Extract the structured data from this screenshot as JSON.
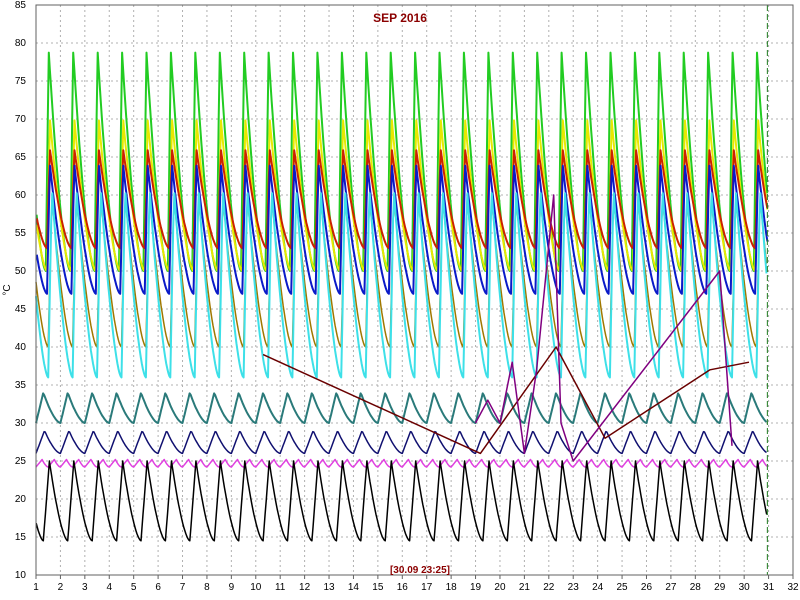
{
  "chart_data": {
    "type": "line",
    "title": "SEP 2016",
    "ylabel": "°C",
    "stamp": "[30.09 23:25]",
    "xlim": [
      1,
      32
    ],
    "ylim": [
      10,
      85
    ],
    "x_ticks": [
      "1",
      "2",
      "3",
      "4",
      "5",
      "6",
      "7",
      "8",
      "9",
      "10",
      "11",
      "12",
      "13",
      "14",
      "15",
      "16",
      "17",
      "18",
      "19",
      "20",
      "21",
      "22",
      "23",
      "24",
      "25",
      "26",
      "27",
      "28",
      "29",
      "30",
      "31",
      "32"
    ],
    "y_ticks": [
      "10",
      "15",
      "20",
      "25",
      "30",
      "35",
      "40",
      "45",
      "50",
      "55",
      "60",
      "65",
      "70",
      "75",
      "80",
      "85"
    ],
    "grid": true,
    "colors": {
      "grid": "#b0b0b0",
      "title": "#8B0000",
      "marker_line": "#1e7a1e"
    },
    "current_time_x": 30.95,
    "series": [
      {
        "color": "#22cc22",
        "width": 2,
        "pattern": {
          "start": 1.4,
          "period": 1,
          "peak": 79,
          "trough": 50,
          "rise": 0.12
        }
      },
      {
        "color": "#e8e800",
        "width": 2,
        "pattern": {
          "start": 1.45,
          "period": 1,
          "peak": 70,
          "trough": 50,
          "rise": 0.12
        }
      },
      {
        "color": "#cc2200",
        "width": 2,
        "pattern": {
          "start": 1.45,
          "period": 1,
          "peak": 66,
          "trough": 53,
          "rise": 0.12
        }
      },
      {
        "color": "#a07800",
        "width": 1.5,
        "pattern": {
          "start": 1.5,
          "period": 1,
          "peak": 60,
          "trough": 40,
          "rise": 0.15
        }
      },
      {
        "color": "#0a1ac8",
        "width": 2,
        "pattern": {
          "start": 1.45,
          "period": 1,
          "peak": 64,
          "trough": 47,
          "rise": 0.12
        }
      },
      {
        "color": "#3de0e8",
        "width": 2,
        "pattern": {
          "start": 1.5,
          "period": 1,
          "peak": 61,
          "trough": 36,
          "rise": 0.15
        }
      },
      {
        "color": "#2a7a7a",
        "width": 2,
        "pattern": {
          "start": 1.0,
          "period": 1,
          "peak": 34,
          "trough": 30,
          "rise": 0.3
        }
      },
      {
        "color": "#101070",
        "width": 1.5,
        "pattern": {
          "start": 1.0,
          "period": 1,
          "peak": 29,
          "trough": 26,
          "rise": 0.35
        }
      },
      {
        "color": "#e040e0",
        "width": 1.5,
        "pattern": {
          "start": 1.0,
          "period": 0.5,
          "peak": 25.2,
          "trough": 24.2,
          "rise": 0.5
        }
      },
      {
        "color": "#000000",
        "width": 1.5,
        "pattern": {
          "start": 1.3,
          "period": 1,
          "peak": 25,
          "trough": 14.5,
          "rise": 0.25
        }
      },
      {
        "color": "#6a0000",
        "width": 1.5,
        "points": [
          [
            10.3,
            39
          ],
          [
            19.2,
            26
          ],
          [
            22.3,
            40
          ],
          [
            24.3,
            28
          ],
          [
            28.6,
            37
          ],
          [
            30.2,
            38
          ]
        ]
      },
      {
        "color": "#800080",
        "width": 1.5,
        "points": [
          [
            19.0,
            30
          ],
          [
            19.5,
            33
          ],
          [
            20.0,
            30
          ],
          [
            20.5,
            38
          ],
          [
            21.0,
            26
          ],
          [
            21.5,
            37
          ],
          [
            22.2,
            60
          ],
          [
            22.5,
            30
          ],
          [
            23.0,
            25
          ],
          [
            29.0,
            50
          ],
          [
            29.5,
            27
          ]
        ]
      }
    ]
  }
}
